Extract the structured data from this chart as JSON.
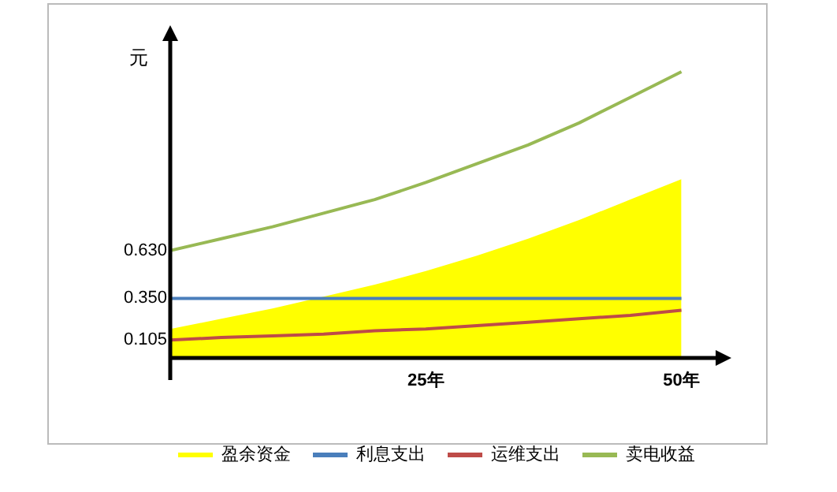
{
  "chart_data": {
    "type": "line",
    "ylabel": "元",
    "x": [
      0,
      5,
      10,
      15,
      20,
      25,
      30,
      35,
      40,
      45,
      50
    ],
    "series": [
      {
        "name": "盈余资金",
        "type": "area",
        "color": "#ffff00",
        "values": [
          0.17,
          0.23,
          0.29,
          0.36,
          0.43,
          0.51,
          0.6,
          0.7,
          0.81,
          0.93,
          1.05
        ]
      },
      {
        "name": "利息支出",
        "color": "#4a7ebb",
        "values": [
          0.35,
          0.35,
          0.35,
          0.35,
          0.35,
          0.35,
          0.35,
          0.35,
          0.35,
          0.35,
          0.35
        ]
      },
      {
        "name": "运维支出",
        "color": "#be4b48",
        "values": [
          0.105,
          0.12,
          0.13,
          0.14,
          0.16,
          0.17,
          0.19,
          0.21,
          0.23,
          0.25,
          0.28
        ]
      },
      {
        "name": "卖电收益",
        "color": "#98b954",
        "values": [
          0.63,
          0.7,
          0.77,
          0.85,
          0.93,
          1.03,
          1.14,
          1.25,
          1.38,
          1.53,
          1.68
        ]
      }
    ],
    "xlim": [
      0,
      53.5
    ],
    "xticks": [
      {
        "value": 25,
        "label": "25年"
      },
      {
        "value": 50,
        "label": "50年"
      }
    ],
    "ylim": [
      0,
      1.87
    ],
    "yticks": [
      0.105,
      {
        "value": 0.35,
        "label": "0.350"
      },
      {
        "value": 0.63,
        "label": "0.630"
      }
    ],
    "grid": false,
    "legend": "bottom right",
    "marker": "none",
    "line_style": "solid"
  }
}
